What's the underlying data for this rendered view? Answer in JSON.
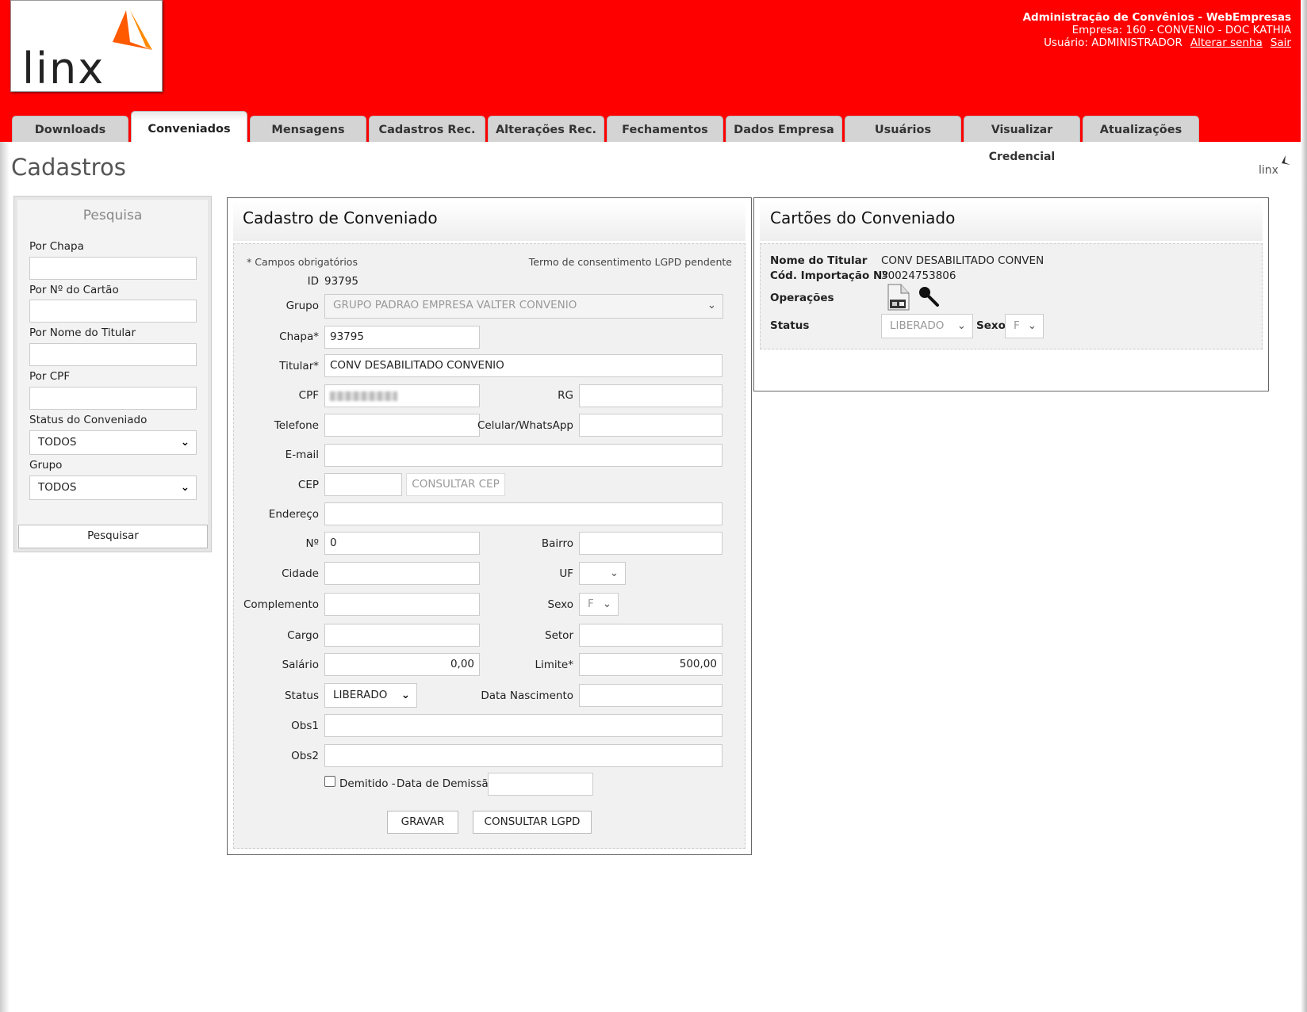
{
  "header": {
    "app_title": "Administração de Convênios - WebEmpresas",
    "empresa": "Empresa: 160 - CONVENIO - DOC KATHIA",
    "usuario": "Usuário: ADMINISTRADOR",
    "change_password": "Alterar senha",
    "logout": "Sair",
    "logo_text": "Linx",
    "brand_color": "#fe0000"
  },
  "tabs": [
    {
      "label": "Downloads"
    },
    {
      "label": "Conveniados",
      "active": true
    },
    {
      "label": "Mensagens"
    },
    {
      "label": "Cadastros Rec."
    },
    {
      "label": "Alterações Rec."
    },
    {
      "label": "Fechamentos"
    },
    {
      "label": "Dados Empresa"
    },
    {
      "label": "Usuários"
    },
    {
      "label": "Visualizar Credencial"
    },
    {
      "label": "Atualizações"
    }
  ],
  "page_title": "Cadastros",
  "search": {
    "title": "Pesquisa",
    "por_chapa": "Por Chapa",
    "por_cartao": "Por Nº do Cartão",
    "por_nome": "Por Nome do Titular",
    "por_cpf": "Por CPF",
    "status_label": "Status do Conveniado",
    "status_value": "TODOS",
    "grupo_label": "Grupo",
    "grupo_value": "TODOS",
    "button": "Pesquisar"
  },
  "form": {
    "title": "Cadastro de Conveniado",
    "required_note": "* Campos obrigatórios",
    "lgpd_note": "Termo de consentimento LGPD pendente",
    "id_label": "ID",
    "id_value": "93795",
    "grupo_label": "Grupo",
    "grupo_value": "GRUPO PADRAO EMPRESA VALTER CONVENIO",
    "chapa_label": "Chapa*",
    "chapa_value": "93795",
    "titular_label": "Titular*",
    "titular_value": "CONV DESABILITADO CONVENIO",
    "cpf_label": "CPF",
    "rg_label": "RG",
    "telefone_label": "Telefone",
    "celular_label": "Celular/WhatsApp",
    "email_label": "E-mail",
    "cep_label": "CEP",
    "consultar_cep": "CONSULTAR CEP",
    "endereco_label": "Endereço",
    "numero_label": "Nº",
    "numero_value": "0",
    "bairro_label": "Bairro",
    "cidade_label": "Cidade",
    "uf_label": "UF",
    "complemento_label": "Complemento",
    "sexo_label": "Sexo",
    "sexo_value": "F",
    "cargo_label": "Cargo",
    "setor_label": "Setor",
    "salario_label": "Salário",
    "salario_value": "0,00",
    "limite_label": "Limite*",
    "limite_value": "500,00",
    "status_label": "Status",
    "status_value": "LIBERADO",
    "nascimento_label": "Data Nascimento",
    "obs1_label": "Obs1",
    "obs2_label": "Obs2",
    "demitido_label": "Demitido -",
    "demissao_label": "Data de Demissão",
    "demitido_checked": false,
    "gravar": "GRAVAR",
    "consultar_lgpd": "CONSULTAR LGPD"
  },
  "cards": {
    "title": "Cartões do Conveniado",
    "nome_label": "Nome do Titular",
    "nome_value": "CONV DESABILITADO CONVEN",
    "cod_label": "Cód. Importação Nº",
    "cod_value": "30024753806",
    "operacoes_label": "Operações",
    "status_label": "Status",
    "status_value": "LIBERADO",
    "sexo_label": "Sexo",
    "sexo_value": "F"
  }
}
